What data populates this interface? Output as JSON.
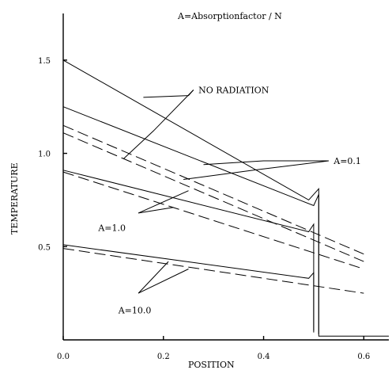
{
  "chart_data": {
    "type": "line",
    "title": "A=Absorptionfactor / N",
    "xlabel": "POSITION",
    "ylabel": "TEMPERATURE",
    "xlim": [
      0.0,
      0.65
    ],
    "ylim": [
      0.0,
      1.75
    ],
    "x_ticks": [
      {
        "value": 0.0,
        "label": "0.0"
      },
      {
        "value": 0.2,
        "label": "0.2"
      },
      {
        "value": 0.4,
        "label": "0.4"
      },
      {
        "value": 0.6,
        "label": "0.6"
      }
    ],
    "y_ticks": [
      {
        "value": 0.5,
        "label": "0.5"
      },
      {
        "value": 1.0,
        "label": "1.0"
      },
      {
        "value": 1.5,
        "label": "1.5"
      }
    ],
    "grid": false,
    "series": [
      {
        "style": "solid",
        "points": [
          [
            0.0,
            1.5
          ],
          [
            0.49,
            0.75
          ],
          [
            0.51,
            0.81
          ],
          [
            0.51,
            0.02
          ],
          [
            0.65,
            0.02
          ]
        ]
      },
      {
        "style": "solid",
        "points": [
          [
            0.0,
            1.25
          ],
          [
            0.5,
            0.72
          ],
          [
            0.51,
            0.78
          ],
          [
            0.51,
            0.03
          ]
        ]
      },
      {
        "style": "solid",
        "points": [
          [
            0.0,
            0.91
          ],
          [
            0.49,
            0.58
          ],
          [
            0.5,
            0.62
          ],
          [
            0.5,
            0.04
          ]
        ]
      },
      {
        "style": "solid",
        "points": [
          [
            0.0,
            0.51
          ],
          [
            0.49,
            0.33
          ],
          [
            0.5,
            0.36
          ],
          [
            0.5,
            0.05
          ]
        ]
      },
      {
        "style": "dashed",
        "points": [
          [
            0.0,
            1.15
          ],
          [
            0.6,
            0.46
          ]
        ]
      },
      {
        "style": "dashed",
        "points": [
          [
            0.0,
            1.11
          ],
          [
            0.6,
            0.42
          ]
        ]
      },
      {
        "style": "dashed",
        "points": [
          [
            0.0,
            0.9
          ],
          [
            0.6,
            0.38
          ]
        ]
      },
      {
        "style": "dashed",
        "points": [
          [
            0.0,
            0.49
          ],
          [
            0.6,
            0.25
          ]
        ]
      }
    ],
    "annotations": [
      {
        "text": "NO RADIATION",
        "at": [
          0.27,
          1.34
        ],
        "pointers": [
          [
            [
              0.26,
              1.34
            ],
            [
              0.25,
              1.31
            ],
            [
              0.16,
              1.3
            ]
          ],
          [
            [
              0.26,
              1.34
            ],
            [
              0.18,
              1.12
            ],
            [
              0.12,
              0.97
            ]
          ]
        ]
      },
      {
        "text": "A=0.1",
        "at": [
          0.54,
          0.96
        ],
        "pointers": [
          [
            [
              0.53,
              0.96
            ],
            [
              0.4,
              0.96
            ],
            [
              0.28,
              0.94
            ]
          ],
          [
            [
              0.53,
              0.96
            ],
            [
              0.38,
              0.91
            ],
            [
              0.24,
              0.86
            ]
          ]
        ]
      },
      {
        "text": "A=1.0",
        "at": [
          0.07,
          0.6
        ],
        "pointers": [
          [
            [
              0.15,
              0.68
            ],
            [
              0.25,
              0.8
            ]
          ],
          [
            [
              0.15,
              0.68
            ],
            [
              0.22,
              0.71
            ]
          ]
        ]
      },
      {
        "text": "A=10.0",
        "at": [
          0.11,
          0.16
        ],
        "pointers": [
          [
            [
              0.15,
              0.25
            ],
            [
              0.21,
              0.42
            ]
          ],
          [
            [
              0.15,
              0.25
            ],
            [
              0.25,
              0.38
            ]
          ]
        ]
      }
    ]
  }
}
